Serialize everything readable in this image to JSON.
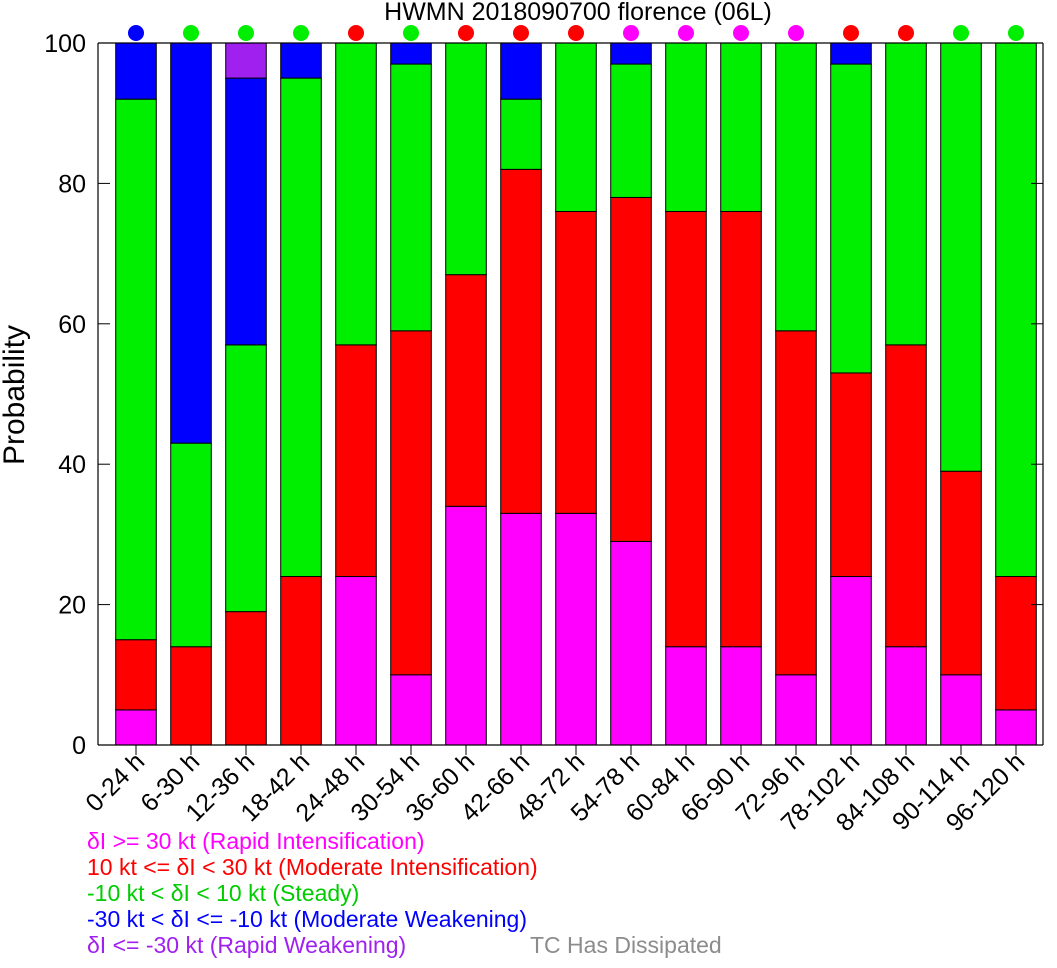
{
  "chart_data": {
    "type": "bar",
    "stacked": true,
    "title": "HWMN 2018090700 florence (06L)",
    "xlabel": "",
    "ylabel": "Probability",
    "ylim": [
      0,
      100
    ],
    "yticks": [
      "0",
      "20",
      "40",
      "60",
      "80",
      "100"
    ],
    "grid": false,
    "categories": [
      "0-24 h",
      "6-30 h",
      "12-36 h",
      "18-42 h",
      "24-48 h",
      "30-54 h",
      "36-60 h",
      "42-66 h",
      "48-72 h",
      "54-78 h",
      "60-84 h",
      "66-90 h",
      "72-96 h",
      "78-102 h",
      "84-108 h",
      "90-114 h",
      "96-120 h"
    ],
    "series": [
      {
        "name": "δI >= 30 kt (Rapid Intensification)",
        "color": "#ff00ff",
        "values": [
          5,
          0,
          0,
          0,
          24,
          10,
          34,
          33,
          33,
          29,
          14,
          14,
          10,
          24,
          14,
          10,
          5
        ]
      },
      {
        "name": "10 kt <= δI < 30 kt (Moderate Intensification)",
        "color": "#ff0000",
        "values": [
          10,
          14,
          19,
          24,
          33,
          49,
          33,
          49,
          43,
          49,
          62,
          62,
          49,
          29,
          43,
          29,
          19
        ]
      },
      {
        "name": "-10 kt < δI < 10 kt (Steady)",
        "color": "#00ee00",
        "values": [
          77,
          29,
          38,
          71,
          43,
          38,
          33,
          10,
          24,
          19,
          24,
          24,
          41,
          44,
          43,
          61,
          76
        ]
      },
      {
        "name": "-30 kt < δI <= -10 kt (Moderate Weakening)",
        "color": "#0000ff",
        "values": [
          8,
          57,
          38,
          5,
          0,
          3,
          0,
          8,
          0,
          3,
          0,
          0,
          0,
          3,
          0,
          0,
          0
        ]
      },
      {
        "name": "δI <= -30 kt (Rapid Weakening)",
        "color": "#a020f0",
        "values": [
          0,
          0,
          5,
          0,
          0,
          0,
          0,
          0,
          0,
          0,
          0,
          0,
          0,
          0,
          0,
          0,
          0
        ]
      }
    ],
    "top_markers": [
      "#0000ff",
      "#00ee00",
      "#00ee00",
      "#00ee00",
      "#ff0000",
      "#00ee00",
      "#ff0000",
      "#ff0000",
      "#ff0000",
      "#ff00ff",
      "#ff00ff",
      "#ff00ff",
      "#ff00ff",
      "#ff0000",
      "#ff0000",
      "#00ee00",
      "#00ee00"
    ],
    "legend": {
      "placement": "bottom-left",
      "entries": [
        {
          "label": "δI >= 30 kt (Rapid Intensification)",
          "color": "#ff00ff"
        },
        {
          "label": "10 kt <= δI < 30 kt (Moderate Intensification)",
          "color": "#ff0000"
        },
        {
          "label": "-10 kt < δI < 10 kt (Steady)",
          "color": "#00cc00"
        },
        {
          "label": "-30 kt < δI <= -10 kt (Moderate Weakening)",
          "color": "#0000ff"
        },
        {
          "label": "δI <= -30 kt (Rapid Weakening)",
          "color": "#a020f0"
        }
      ],
      "note": {
        "label": "TC Has Dissipated",
        "color": "#8c8c8c"
      }
    }
  }
}
